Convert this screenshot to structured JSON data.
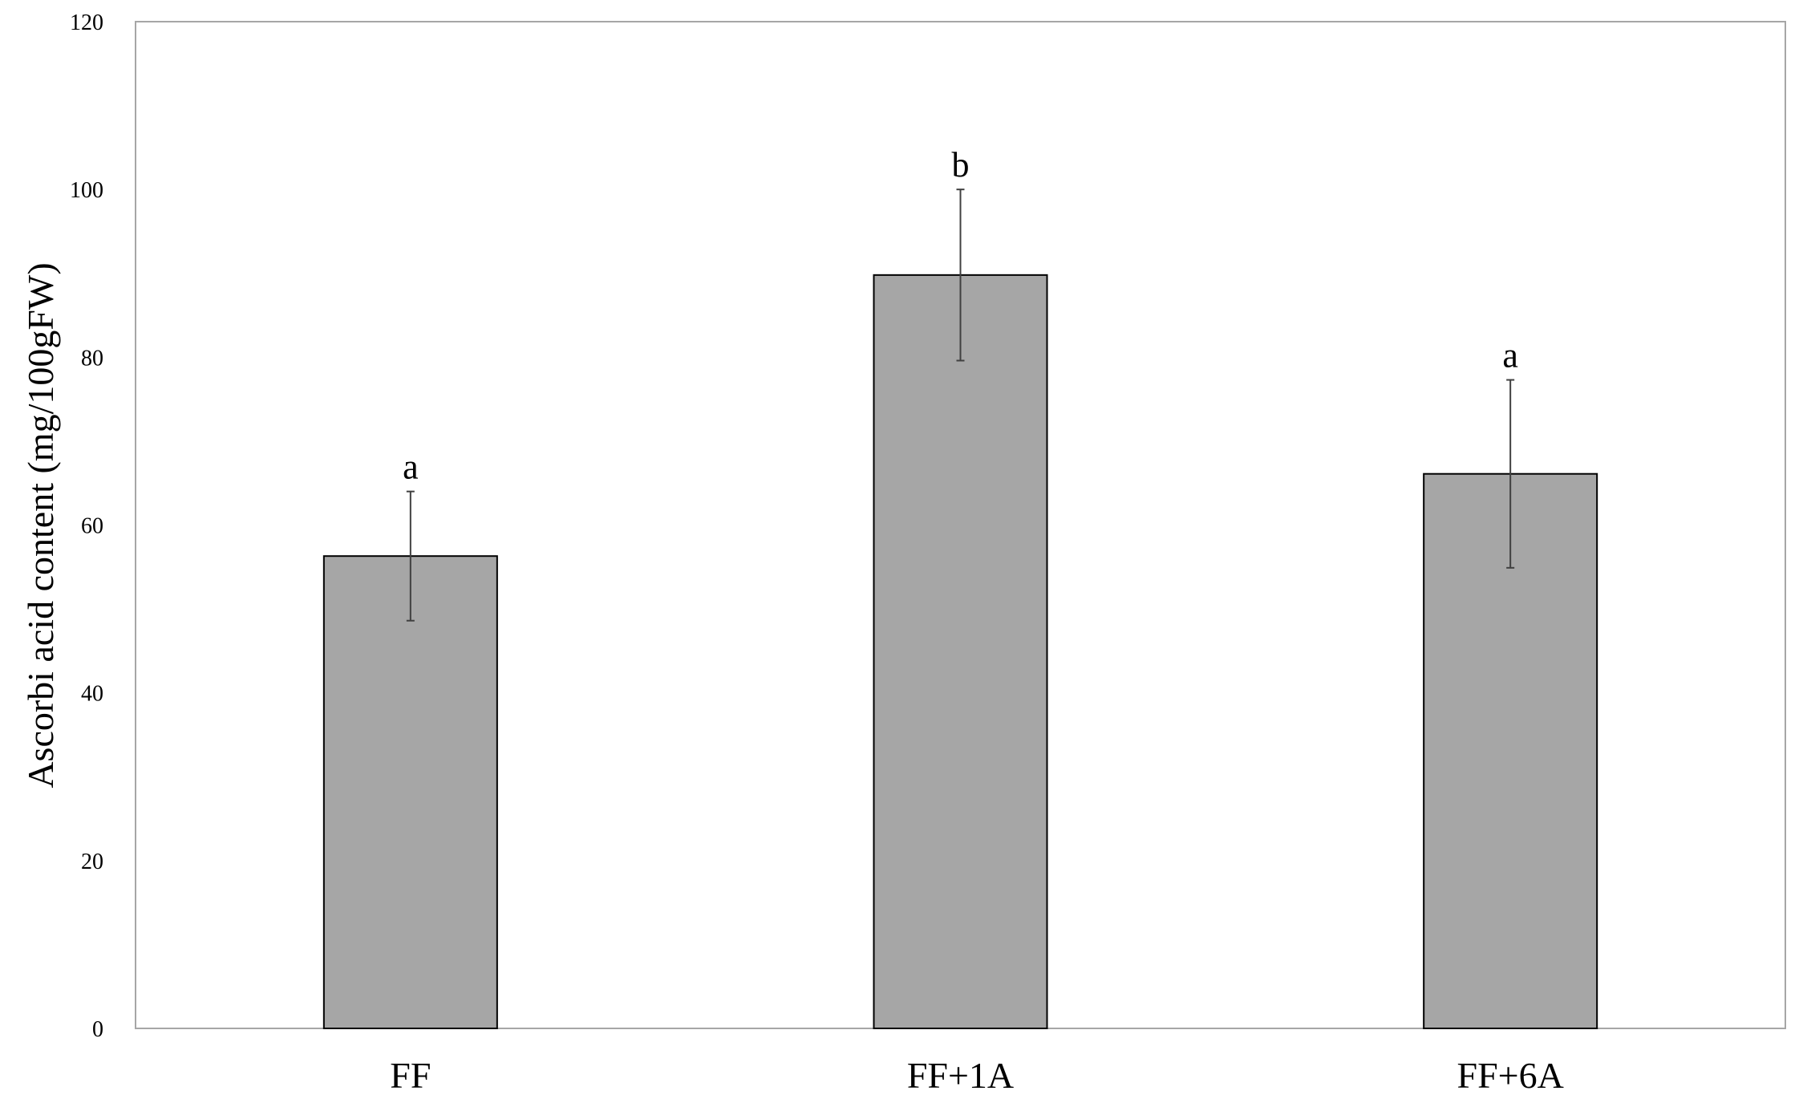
{
  "chart_data": {
    "type": "bar",
    "title": "",
    "xlabel": "",
    "ylabel": "Ascorbi acid content (mg/100gFW)",
    "ylim": [
      0,
      120
    ],
    "yticks": [
      0,
      20,
      40,
      60,
      80,
      100,
      120
    ],
    "grid": false,
    "legend": "none",
    "categories": [
      "FF",
      "FF+1A",
      "FF+6A"
    ],
    "values": [
      56.3,
      89.8,
      66.1
    ],
    "errors": [
      7.7,
      10.2,
      11.2
    ],
    "significance_letters": [
      "a",
      "b",
      "a"
    ],
    "colors": {
      "bar_fill": "#a6a6a6",
      "bar_edge": "#000000",
      "error_bar": "#404040",
      "frame": "#a6a6a6"
    }
  }
}
